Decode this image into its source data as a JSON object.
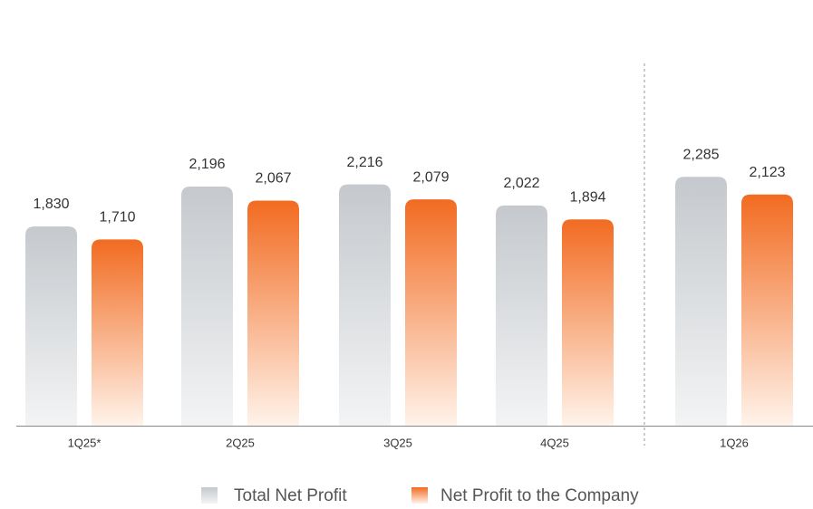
{
  "chart_data": {
    "type": "bar",
    "categories": [
      "1Q25*",
      "2Q25",
      "3Q25",
      "4Q25",
      "1Q26"
    ],
    "series": [
      {
        "name": "Total Net Profit",
        "color": "#c5c9cd",
        "values": [
          1830,
          2196,
          2216,
          2022,
          2285
        ],
        "value_labels": [
          "1,830",
          "2,196",
          "2,216",
          "2,022",
          "2,285"
        ]
      },
      {
        "name": "Net Profit to the Company",
        "color": "#f26b21",
        "values": [
          1710,
          2067,
          2079,
          1894,
          2123
        ],
        "value_labels": [
          "1,710",
          "2,067",
          "2,079",
          "1,894",
          "2,123"
        ]
      }
    ],
    "ylim": [
      0,
      3660
    ],
    "grid": false,
    "legend": "bottom"
  }
}
